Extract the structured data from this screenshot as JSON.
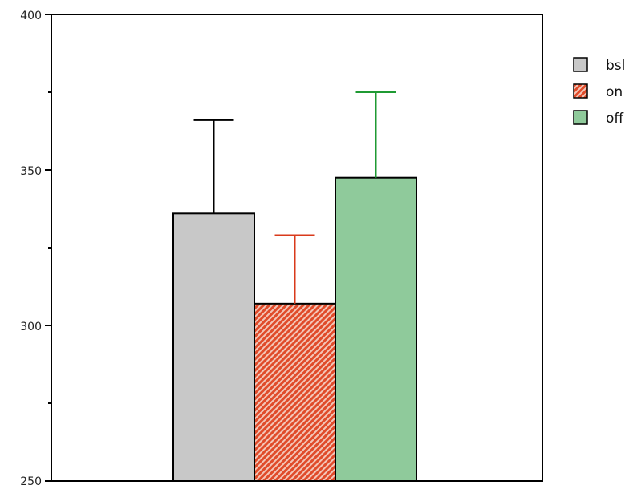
{
  "chart_data": {
    "type": "bar",
    "title": "",
    "xlabel": "",
    "ylabel": "",
    "ylim": [
      250,
      400
    ],
    "yticks": [
      "400",
      "350",
      "300",
      "250"
    ],
    "ytick_values": [
      400,
      350,
      300,
      250
    ],
    "minor_yticks": [
      275,
      325,
      375
    ],
    "grid": false,
    "legend": "right",
    "series": [
      {
        "name": "bsl",
        "value": 336,
        "error_upper": 366,
        "color": "#c8c8c8",
        "error_color": "#000000",
        "pattern": "solid"
      },
      {
        "name": "on",
        "value": 307,
        "error_upper": 329,
        "color": "#e04b2a",
        "error_color": "#d93a1b",
        "pattern": "diagonal-hatch"
      },
      {
        "name": "off",
        "value": 347.5,
        "error_upper": 375,
        "color": "#8fca9b",
        "error_color": "#1f9a33",
        "pattern": "solid"
      }
    ]
  }
}
